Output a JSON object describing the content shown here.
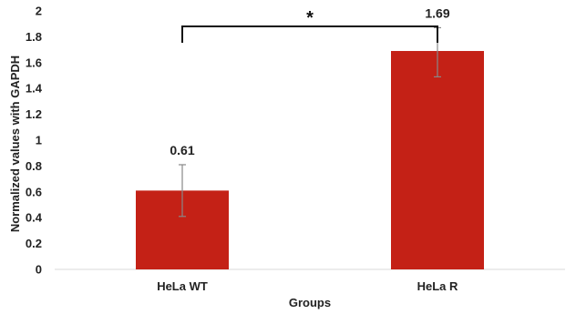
{
  "chart_data": {
    "type": "bar",
    "categories": [
      "HeLa WT",
      "HeLa R"
    ],
    "values": [
      0.61,
      1.69
    ],
    "error_upper": [
      0.81,
      1.87
    ],
    "error_lower": [
      0.41,
      1.49
    ],
    "data_labels": [
      "0.61",
      "1.69"
    ],
    "xlabel": "Groups",
    "ylabel": "Normalized values with GAPDH",
    "ylim": [
      0,
      2
    ],
    "yticks": [
      0,
      0.2,
      0.4,
      0.6,
      0.8,
      1,
      1.2,
      1.4,
      1.6,
      1.8,
      2
    ],
    "ytick_labels": [
      "0",
      "0.2",
      "0.4",
      "0.6",
      "0.8",
      "1",
      "1.2",
      "1.4",
      "1.6",
      "1.8",
      "2"
    ],
    "significance": {
      "label": "*",
      "between": [
        0,
        1
      ]
    },
    "grid": false,
    "legend": "none",
    "colors": {
      "bar": "#c42116",
      "error_bar": "#888888",
      "bracket": "#111111",
      "axis": "#d9d9d9"
    }
  }
}
